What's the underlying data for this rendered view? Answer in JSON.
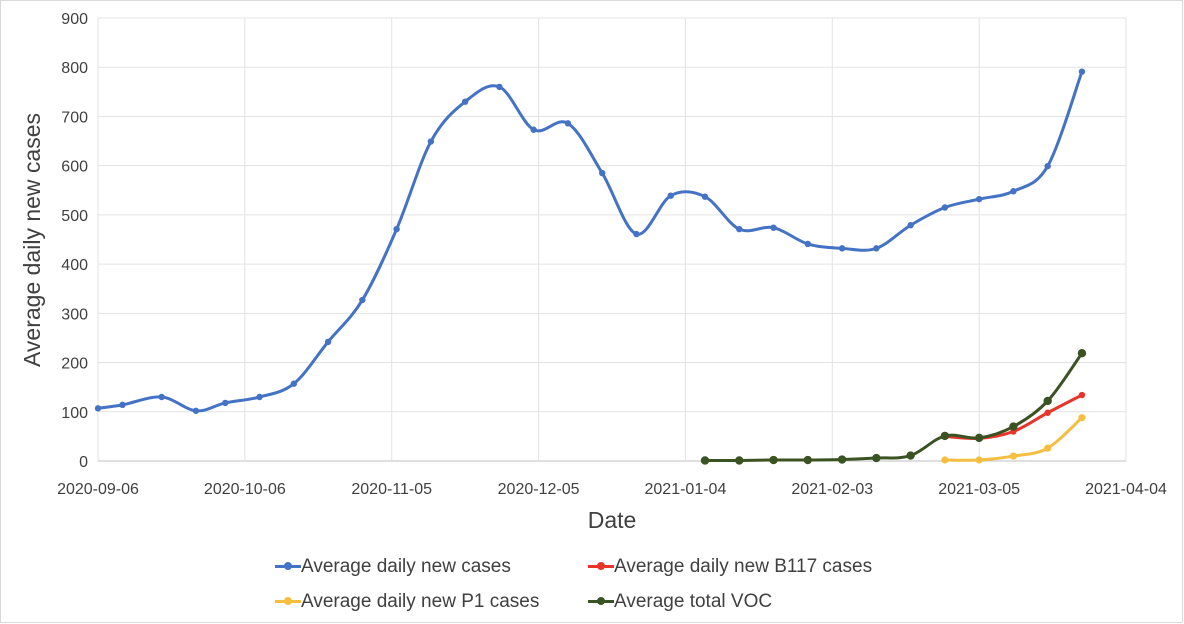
{
  "chart_data": {
    "type": "line",
    "title": "",
    "xlabel": "Date",
    "ylabel": "Average daily new cases",
    "ylim": [
      0,
      900
    ],
    "yticks": [
      0,
      100,
      200,
      300,
      400,
      500,
      600,
      700,
      800,
      900
    ],
    "xlim": [
      "2020-09-06",
      "2021-04-04"
    ],
    "xticks": [
      "2020-09-06",
      "2020-10-06",
      "2020-11-05",
      "2020-12-05",
      "2021-01-04",
      "2021-02-03",
      "2021-03-05",
      "2021-04-04"
    ],
    "grid": true,
    "legend_position": "bottom",
    "series": [
      {
        "name": "Average daily new cases",
        "color": "#4472C4",
        "points": [
          [
            "2020-09-06",
            107
          ],
          [
            "2020-09-11",
            114
          ],
          [
            "2020-09-19",
            130
          ],
          [
            "2020-09-26",
            102
          ],
          [
            "2020-10-02",
            118
          ],
          [
            "2020-10-09",
            130
          ],
          [
            "2020-10-16",
            157
          ],
          [
            "2020-10-23",
            242
          ],
          [
            "2020-10-30",
            327
          ],
          [
            "2020-11-06",
            471
          ],
          [
            "2020-11-13",
            649
          ],
          [
            "2020-11-20",
            730
          ],
          [
            "2020-11-27",
            760
          ],
          [
            "2020-12-04",
            673
          ],
          [
            "2020-12-11",
            686
          ],
          [
            "2020-12-18",
            585
          ],
          [
            "2020-12-25",
            461
          ],
          [
            "2021-01-01",
            539
          ],
          [
            "2021-01-08",
            537
          ],
          [
            "2021-01-15",
            471
          ],
          [
            "2021-01-22",
            474
          ],
          [
            "2021-01-29",
            441
          ],
          [
            "2021-02-05",
            432
          ],
          [
            "2021-02-12",
            432
          ],
          [
            "2021-02-19",
            479
          ],
          [
            "2021-02-26",
            515
          ],
          [
            "2021-03-05",
            532
          ],
          [
            "2021-03-12",
            548
          ],
          [
            "2021-03-19",
            599
          ],
          [
            "2021-03-26",
            791
          ]
        ]
      },
      {
        "name": "Average daily new B117 cases",
        "color": "#E8352B",
        "points": [
          [
            "2021-02-26",
            50
          ],
          [
            "2021-03-05",
            46
          ],
          [
            "2021-03-12",
            60
          ],
          [
            "2021-03-19",
            98
          ],
          [
            "2021-03-26",
            134
          ]
        ]
      },
      {
        "name": "Average daily new P1 cases",
        "color": "#F5BE41",
        "points": [
          [
            "2021-02-26",
            2
          ],
          [
            "2021-03-05",
            2
          ],
          [
            "2021-03-12",
            10
          ],
          [
            "2021-03-19",
            26
          ],
          [
            "2021-03-26",
            88
          ]
        ]
      },
      {
        "name": "Average total VOC",
        "color": "#3B5323",
        "points": [
          [
            "2021-01-08",
            1
          ],
          [
            "2021-01-15",
            1
          ],
          [
            "2021-01-22",
            2
          ],
          [
            "2021-01-29",
            2
          ],
          [
            "2021-02-05",
            3
          ],
          [
            "2021-02-12",
            6
          ],
          [
            "2021-02-19",
            11
          ],
          [
            "2021-02-26",
            51
          ],
          [
            "2021-03-05",
            47
          ],
          [
            "2021-03-12",
            70
          ],
          [
            "2021-03-19",
            122
          ],
          [
            "2021-03-26",
            219
          ]
        ]
      }
    ]
  }
}
